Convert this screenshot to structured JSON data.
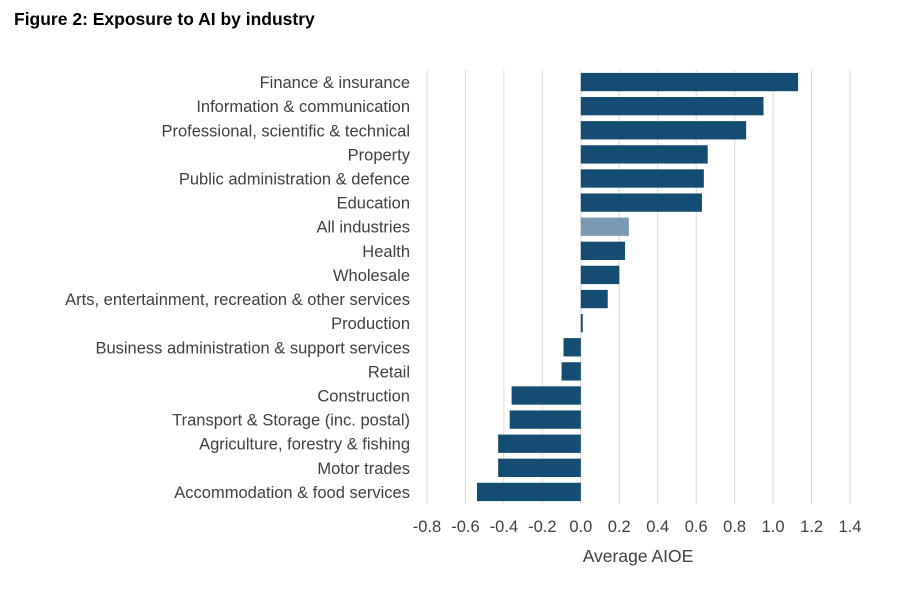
{
  "figure_title": "Figure 2: Exposure to AI by industry",
  "colors": {
    "bar": "#134d73",
    "highlight": "#7a9ab3",
    "grid": "#d9d9d9",
    "text": "#404040"
  },
  "chart_data": {
    "type": "bar",
    "orientation": "horizontal",
    "title": "Figure 2: Exposure to AI by industry",
    "xlabel": "Average AIOE",
    "ylabel": "",
    "xlim": [
      -0.8,
      1.4
    ],
    "xticks": [
      -0.8,
      -0.6,
      -0.4,
      -0.2,
      0.0,
      0.2,
      0.4,
      0.6,
      0.8,
      1.0,
      1.2,
      1.4
    ],
    "xtick_labels": [
      "-0.8",
      "-0.6",
      "-0.4",
      "-0.2",
      "0.0",
      "0.2",
      "0.4",
      "0.6",
      "0.8",
      "1.0",
      "1.2",
      "1.4"
    ],
    "grid": "vertical",
    "legend": "none",
    "highlight_category": "All industries",
    "categories": [
      "Finance & insurance",
      "Information & communication",
      "Professional, scientific & technical",
      "Property",
      "Public administration & defence",
      "Education",
      "All industries",
      "Health",
      "Wholesale",
      "Arts, entertainment, recreation & other services",
      "Production",
      "Business administration & support services",
      "Retail",
      "Construction",
      "Transport & Storage (inc. postal)",
      "Agriculture, forestry & fishing",
      "Motor trades",
      "Accommodation & food services"
    ],
    "values": [
      1.13,
      0.95,
      0.86,
      0.66,
      0.64,
      0.63,
      0.25,
      0.23,
      0.2,
      0.14,
      0.01,
      -0.09,
      -0.1,
      -0.36,
      -0.37,
      -0.43,
      -0.43,
      -0.54
    ]
  }
}
